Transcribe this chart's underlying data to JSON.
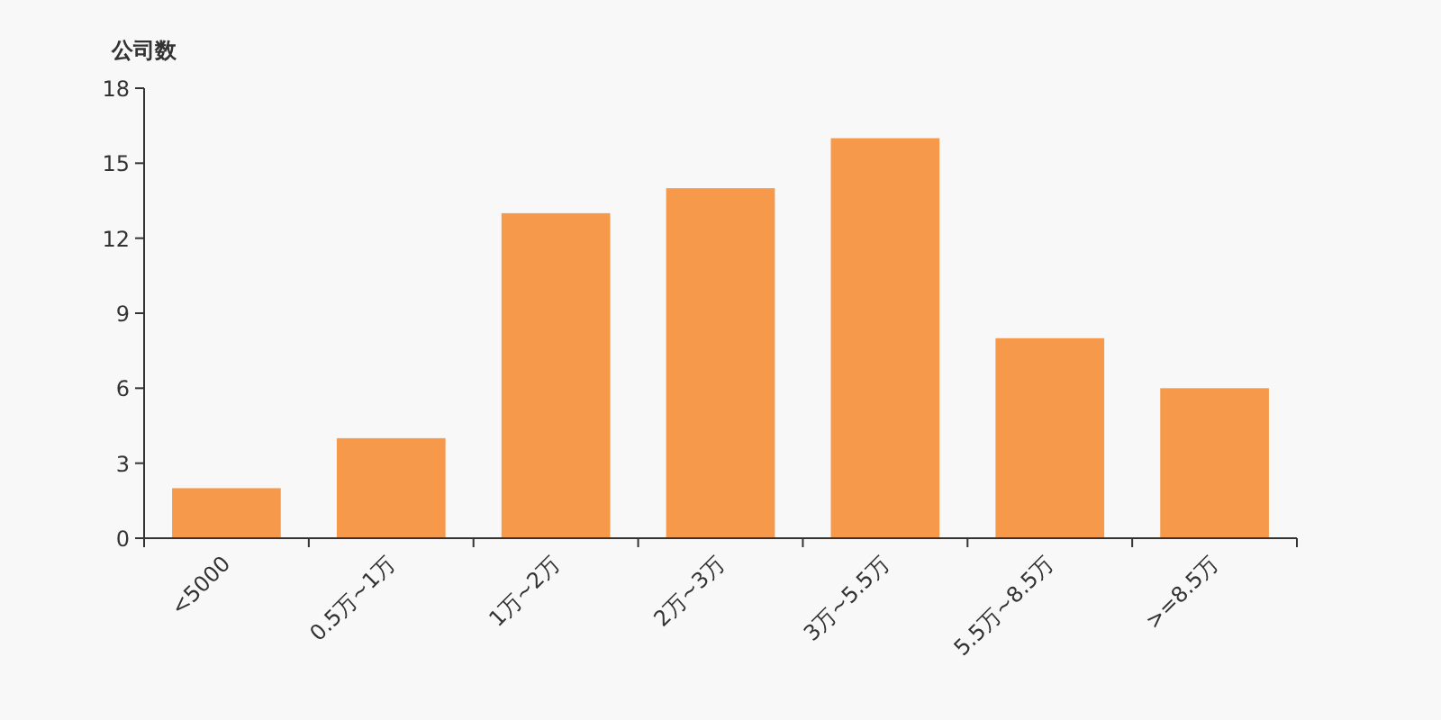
{
  "chart_data": {
    "type": "bar",
    "ylabel": "公司数",
    "categories": [
      "<5000",
      "0.5万~1万",
      "1万~2万",
      "2万~3万",
      "3万~5.5万",
      "5.5万~8.5万",
      ">=8.5万"
    ],
    "values": [
      2,
      4,
      13,
      14,
      16,
      8,
      6
    ],
    "color": "#f7994a",
    "ylim": [
      0,
      18
    ],
    "yticks": [
      0,
      3,
      6,
      9,
      12,
      15,
      18
    ],
    "grid": false
  }
}
